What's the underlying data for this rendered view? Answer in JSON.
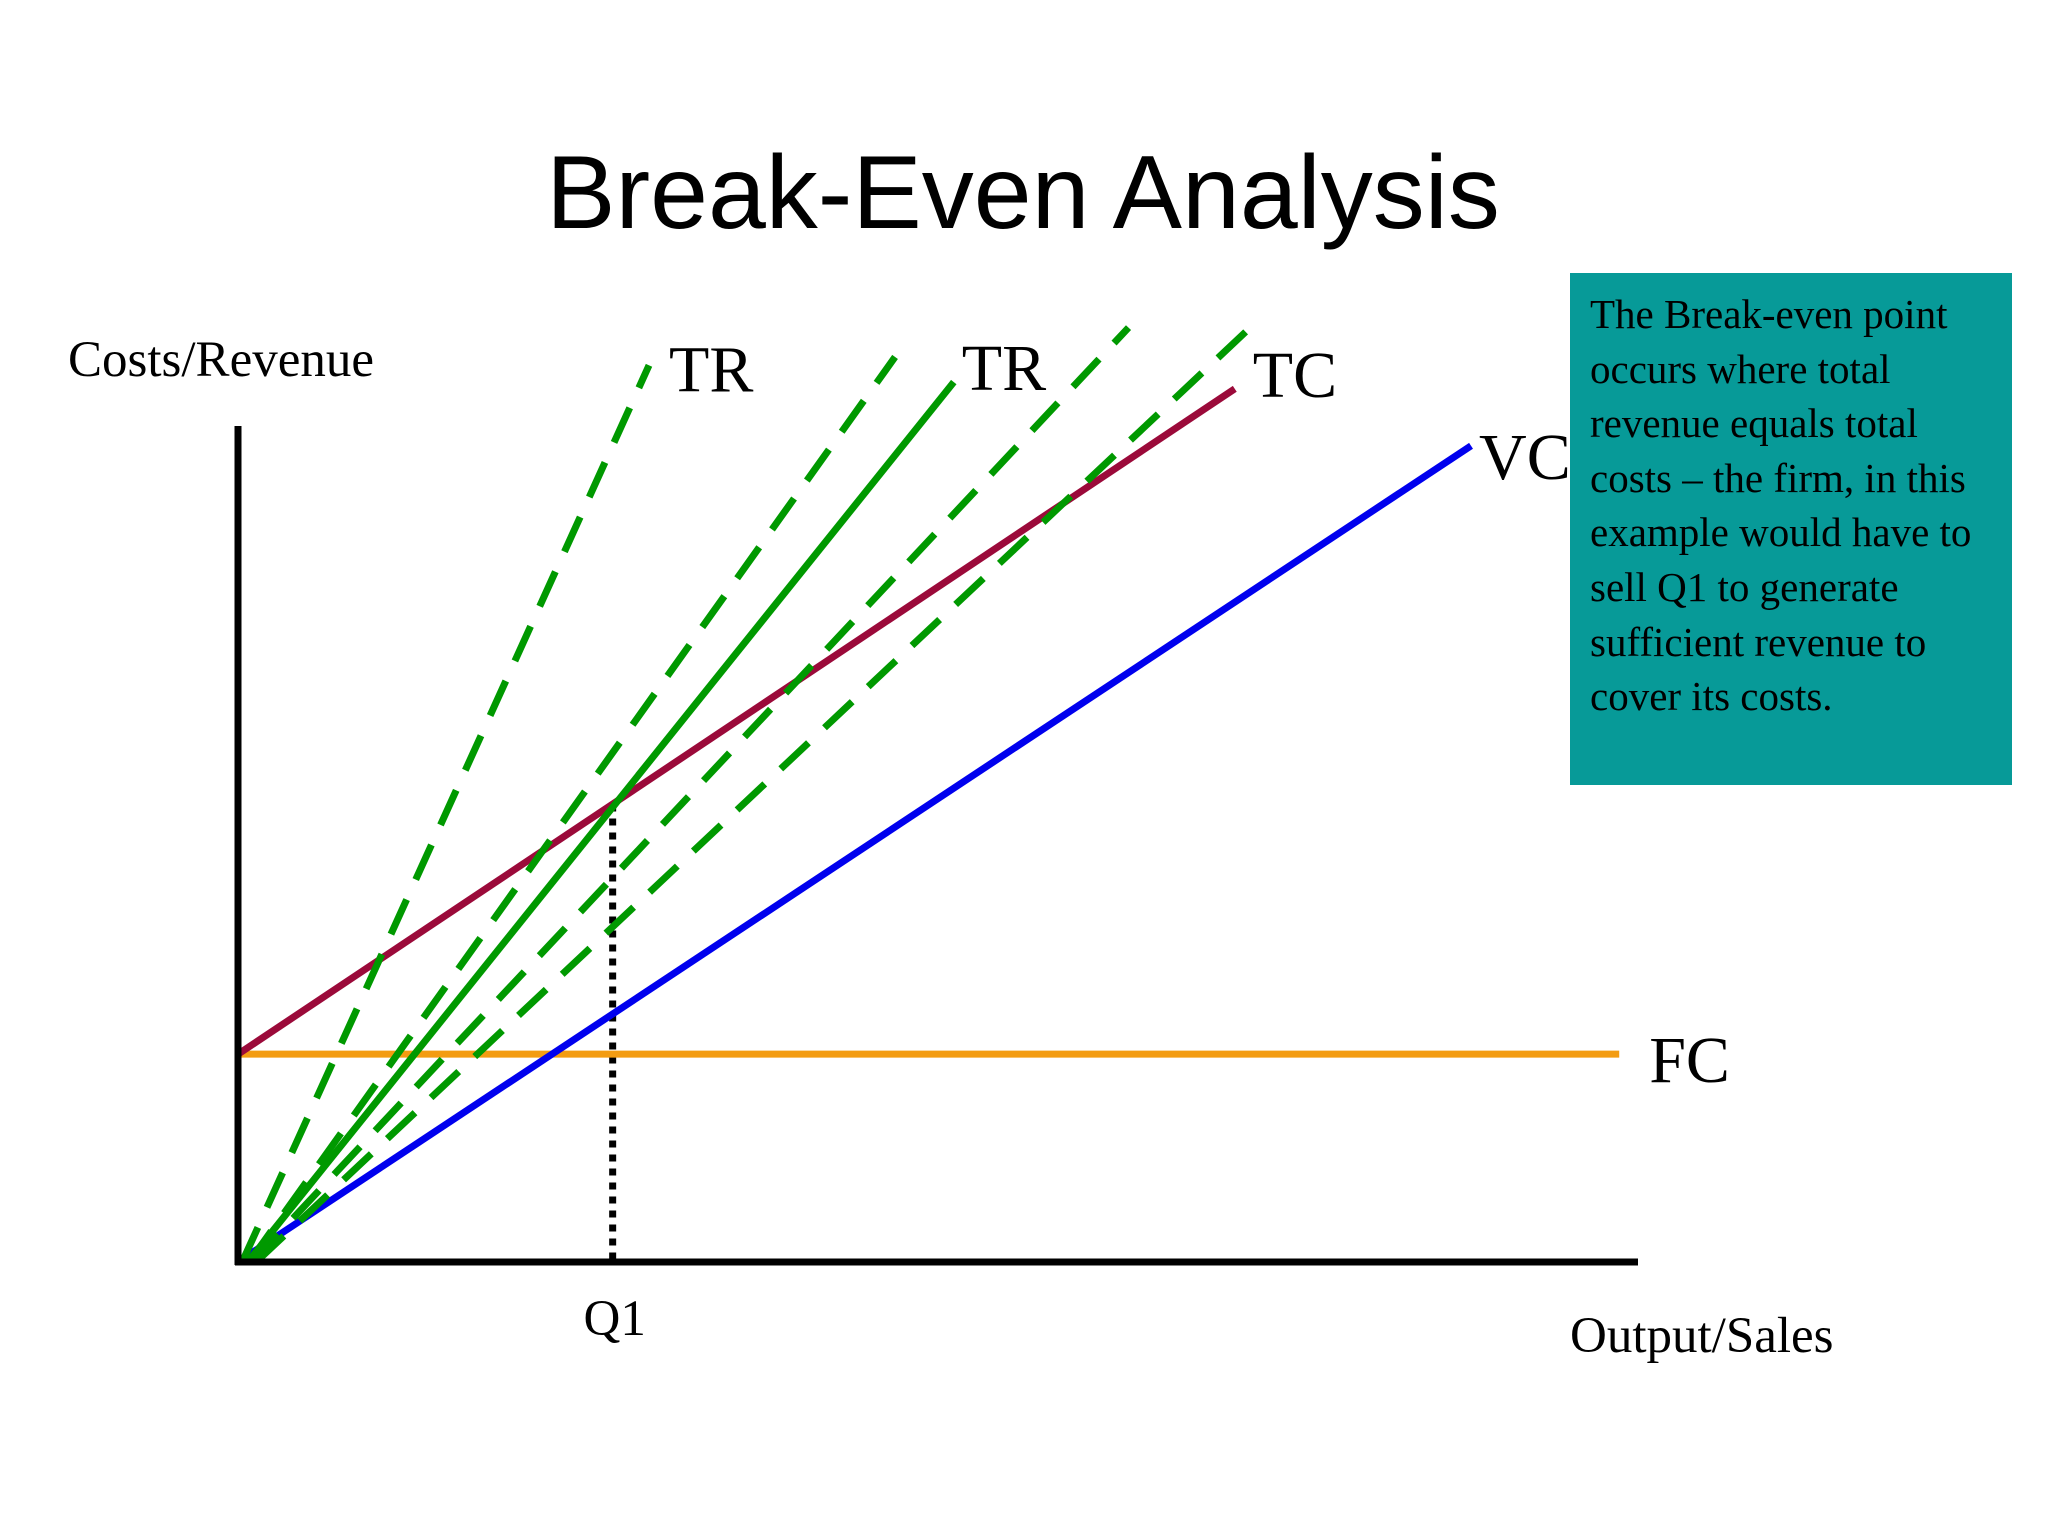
{
  "chart_data": {
    "type": "line",
    "title": "Break-Even Analysis",
    "ylabel": "Costs/Revenue",
    "xlabel": "Output/Sales",
    "xlim": [
      0,
      10
    ],
    "ylim": [
      0,
      10
    ],
    "x_ticks": [
      {
        "label": "Q1",
        "x": 2.68
      }
    ],
    "series": [
      {
        "name": "FC",
        "style": "solid",
        "color": "#f39c12",
        "points": [
          [
            0,
            2.48
          ],
          [
            9.88,
            2.48
          ]
        ]
      },
      {
        "name": "VC",
        "style": "solid",
        "color": "#0000ee",
        "points": [
          [
            0,
            0
          ],
          [
            8.82,
            9.74
          ]
        ]
      },
      {
        "name": "TC",
        "style": "solid",
        "color": "#9b0a3a",
        "points": [
          [
            0,
            2.48
          ],
          [
            7.13,
            10.42
          ]
        ]
      },
      {
        "name": "TR",
        "style": "solid",
        "color": "#009900",
        "points": [
          [
            0.07,
            0
          ],
          [
            5.12,
            10.5
          ]
        ]
      },
      {
        "name": "TR",
        "style": "dashed",
        "color": "#009900",
        "points": [
          [
            0.03,
            0
          ],
          [
            2.94,
            10.7
          ]
        ]
      },
      {
        "name": "",
        "style": "dashed",
        "color": "#009900",
        "points": [
          [
            0.08,
            0
          ],
          [
            4.7,
            10.8
          ]
        ]
      },
      {
        "name": "",
        "style": "dashed",
        "color": "#009900",
        "points": [
          [
            0.1,
            0
          ],
          [
            6.37,
            11.15
          ]
        ]
      },
      {
        "name": "",
        "style": "dashed",
        "color": "#009900",
        "points": [
          [
            0.13,
            0
          ],
          [
            7.24,
            11.15
          ]
        ]
      }
    ],
    "break_even": {
      "x": 2.68,
      "y": 5.46,
      "guide_style": "dotted"
    },
    "annotation": "The Break-even point occurs where total revenue equals total costs – the firm, in this example would have to sell Q1 to generate sufficient revenue to cover its costs.",
    "grid": false,
    "legend": "none"
  },
  "colors": {
    "annotation_box": "#079a98",
    "axes": "#000000"
  }
}
